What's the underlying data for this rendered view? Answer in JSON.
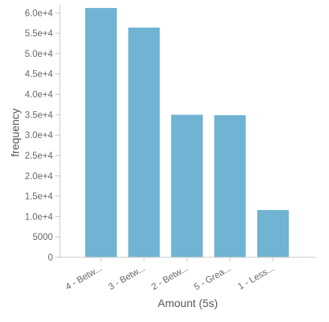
{
  "chart_data": {
    "type": "bar",
    "categories": [
      "4 - Betw...",
      "3 - Betw...",
      "2 - Betw...",
      "5 - Grea...",
      "1 - Less..."
    ],
    "values": [
      61200,
      56400,
      35000,
      34900,
      11600
    ],
    "xlabel": "Amount (5s)",
    "ylabel": "frequency",
    "ylim": [
      0,
      62000
    ],
    "yticks": [
      0,
      5000,
      10000,
      15000,
      20000,
      25000,
      30000,
      35000,
      40000,
      45000,
      50000,
      55000,
      60000
    ],
    "ytick_labels": [
      "0",
      "5000",
      "1.0e+4",
      "1.5e+4",
      "2.0e+4",
      "2.5e+4",
      "3.0e+4",
      "3.5e+4",
      "4.0e+4",
      "4.5e+4",
      "5.0e+4",
      "5.5e+4",
      "6.0e+4"
    ],
    "grid": false,
    "bar_color": "#71b3d3",
    "axis_color": "#c8c8c8"
  }
}
